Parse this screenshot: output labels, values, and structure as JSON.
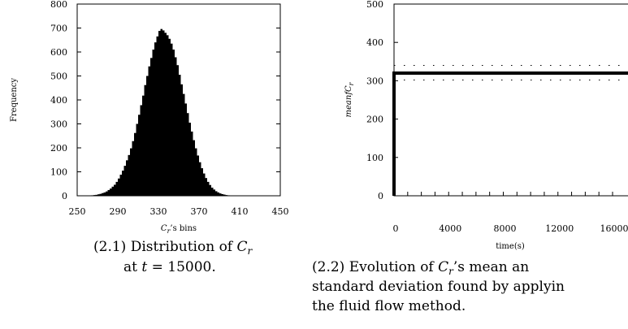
{
  "chart_data": [
    {
      "type": "bar",
      "ylabel": "Frequency",
      "xlabel": "C_r's bins",
      "xlim": [
        250,
        450
      ],
      "ylim": [
        0,
        800
      ],
      "xticks": [
        "250",
        "290",
        "330",
        "370",
        "410",
        "450"
      ],
      "yticks": [
        "0",
        "100",
        "200",
        "300",
        "400",
        "500",
        "600",
        "700",
        "800"
      ],
      "bin_width": 2,
      "bins": [
        [
          262,
          1
        ],
        [
          264,
          2
        ],
        [
          266,
          3
        ],
        [
          268,
          4
        ],
        [
          270,
          6
        ],
        [
          272,
          8
        ],
        [
          274,
          11
        ],
        [
          276,
          14
        ],
        [
          278,
          18
        ],
        [
          280,
          24
        ],
        [
          282,
          30
        ],
        [
          284,
          38
        ],
        [
          286,
          46
        ],
        [
          288,
          58
        ],
        [
          290,
          72
        ],
        [
          292,
          88
        ],
        [
          294,
          105
        ],
        [
          296,
          125
        ],
        [
          298,
          148
        ],
        [
          300,
          170
        ],
        [
          302,
          198
        ],
        [
          304,
          228
        ],
        [
          306,
          262
        ],
        [
          308,
          300
        ],
        [
          310,
          338
        ],
        [
          312,
          378
        ],
        [
          314,
          418
        ],
        [
          316,
          462
        ],
        [
          318,
          500
        ],
        [
          320,
          540
        ],
        [
          322,
          575
        ],
        [
          324,
          610
        ],
        [
          326,
          640
        ],
        [
          328,
          665
        ],
        [
          330,
          688
        ],
        [
          332,
          696
        ],
        [
          334,
          690
        ],
        [
          336,
          680
        ],
        [
          338,
          670
        ],
        [
          340,
          655
        ],
        [
          342,
          635
        ],
        [
          344,
          610
        ],
        [
          346,
          578
        ],
        [
          348,
          545
        ],
        [
          350,
          505
        ],
        [
          352,
          465
        ],
        [
          354,
          425
        ],
        [
          356,
          385
        ],
        [
          358,
          345
        ],
        [
          360,
          305
        ],
        [
          362,
          268
        ],
        [
          364,
          232
        ],
        [
          366,
          198
        ],
        [
          368,
          168
        ],
        [
          370,
          140
        ],
        [
          372,
          115
        ],
        [
          374,
          93
        ],
        [
          376,
          74
        ],
        [
          378,
          58
        ],
        [
          380,
          45
        ],
        [
          382,
          34
        ],
        [
          384,
          26
        ],
        [
          386,
          19
        ],
        [
          388,
          14
        ],
        [
          390,
          10
        ],
        [
          392,
          7
        ],
        [
          394,
          5
        ],
        [
          396,
          3
        ],
        [
          398,
          2
        ],
        [
          400,
          1
        ]
      ],
      "caption_prefix": "(2.1) Distribution of ",
      "caption_line2": "at t = 15000."
    },
    {
      "type": "line",
      "ylabel": "meanfC_r",
      "xlabel": "time(s)",
      "xlim": [
        0,
        16000
      ],
      "ylim": [
        0,
        500
      ],
      "xticks": [
        "0",
        "4000",
        "8000",
        "12000",
        "16000"
      ],
      "yticks": [
        "0",
        "100",
        "200",
        "300",
        "400",
        "500"
      ],
      "series": [
        {
          "points": [
            [
              0,
              0
            ],
            [
              0,
              320
            ],
            [
              16000,
              320
            ]
          ],
          "style": "solid"
        },
        {
          "points": [
            [
              0,
              340
            ],
            [
              16000,
              340
            ]
          ],
          "style": "dotted"
        },
        {
          "points": [
            [
              0,
              302
            ],
            [
              16000,
              302
            ]
          ],
          "style": "dotted"
        }
      ],
      "caption_line1": "(2.2) Evolution of C_r's mean an",
      "caption_line2": "standard deviation found by applyin",
      "caption_line3": "the fluid flow method."
    }
  ]
}
